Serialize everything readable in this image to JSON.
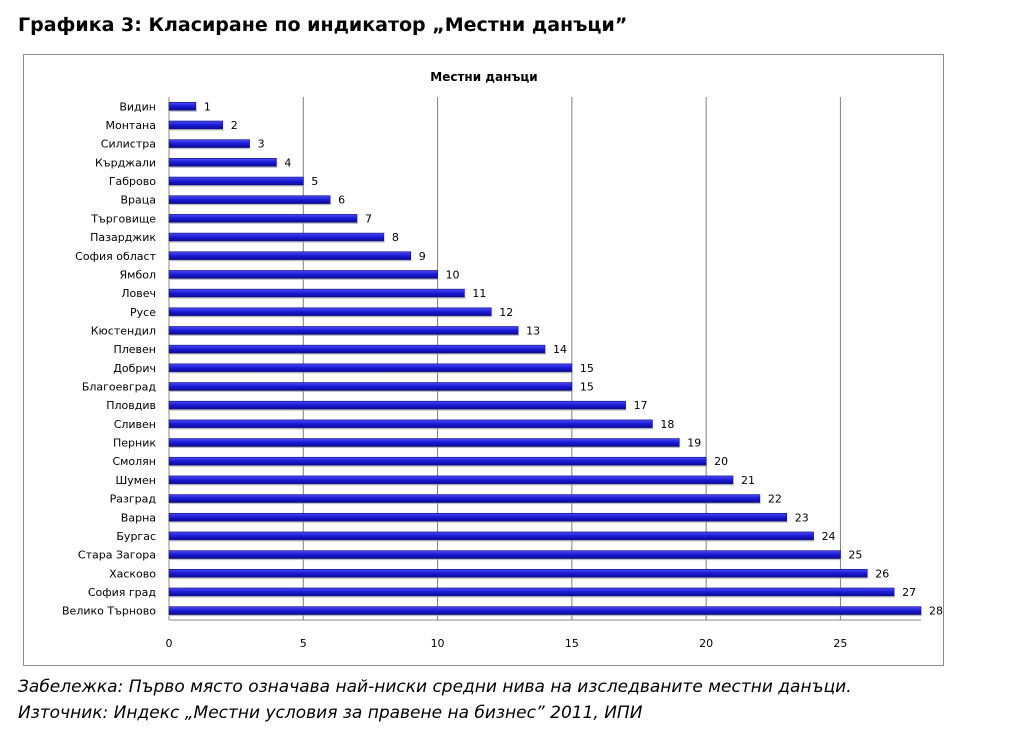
{
  "page": {
    "heading": "Графика 3: Класиране по индикатор „Местни данъци”",
    "note": "Забележка: Първо място означава най-ниски средни нива на изследваните местни данъци.",
    "source": "Източник: Индекс „Местни условия за правене на бизнес” 2011, ИПИ"
  },
  "chart_data": {
    "type": "bar",
    "orientation": "horizontal",
    "title": "Местни данъци",
    "xlabel": "",
    "ylabel": "",
    "xlim": [
      0,
      28
    ],
    "x_ticks": [
      0,
      5,
      10,
      15,
      20,
      25
    ],
    "grid": true,
    "legend": "none",
    "bar_color": "#1a1ad6",
    "categories": [
      "Видин",
      "Монтана",
      "Силистра",
      "Кърджали",
      "Габрово",
      "Враца",
      "Търговище",
      "Пазарджик",
      "София област",
      "Ямбол",
      "Ловеч",
      "Русе",
      "Кюстендил",
      "Плевен",
      "Добрич",
      "Благоевград",
      "Пловдив",
      "Сливен",
      "Перник",
      "Смолян",
      "Шумен",
      "Разград",
      "Варна",
      "Бургас",
      "Стара Загора",
      "Хасково",
      "София град",
      "Велико Търново"
    ],
    "values": [
      1,
      2,
      3,
      4,
      5,
      6,
      7,
      8,
      9,
      10,
      11,
      12,
      13,
      14,
      15,
      15,
      17,
      18,
      19,
      20,
      21,
      22,
      23,
      24,
      25,
      26,
      27,
      28
    ]
  }
}
